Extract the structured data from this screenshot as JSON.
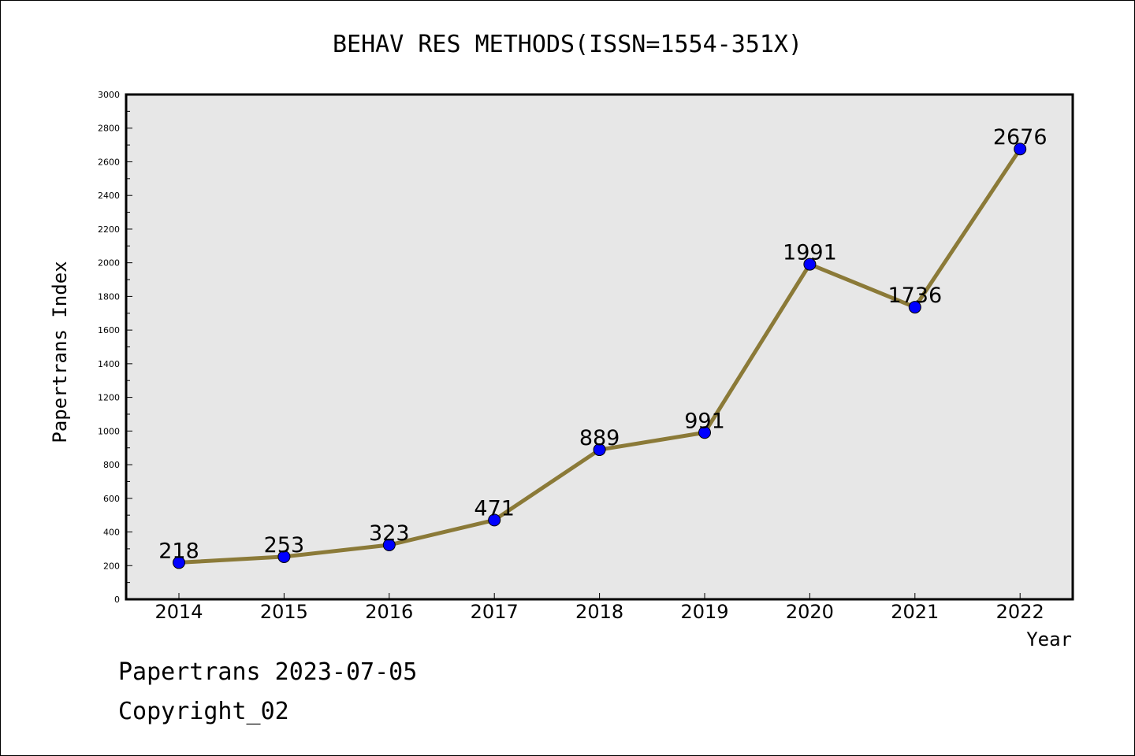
{
  "chart_data": {
    "type": "line",
    "title": "BEHAV RES METHODS(ISSN=1554-351X)",
    "xlabel": "Year",
    "ylabel": "Papertrans Index",
    "categories": [
      "2014",
      "2015",
      "2016",
      "2017",
      "2018",
      "2019",
      "2020",
      "2021",
      "2022"
    ],
    "series": [
      {
        "values": [
          218,
          253,
          323,
          471,
          889,
          991,
          1991,
          1736,
          2676
        ]
      }
    ],
    "ylim": [
      0,
      3000
    ],
    "yticks": [
      0,
      200,
      400,
      600,
      800,
      1000,
      1200,
      1400,
      1600,
      1800,
      2000,
      2200,
      2400,
      2600,
      2800,
      3000
    ],
    "grid": false,
    "data_labels": true,
    "colors": {
      "line": "#8b7a38",
      "marker": "#0000ff",
      "marker_edge": "#000000",
      "plot_background": "#e7e7e7"
    }
  },
  "footer": {
    "date_text": "Papertrans 2023-07-05",
    "copyright_text": "Copyright_02"
  }
}
